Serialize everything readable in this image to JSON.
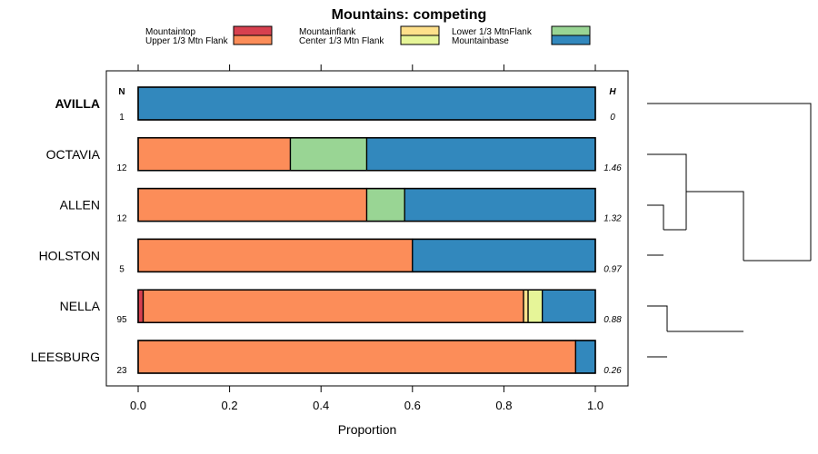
{
  "chart_data": {
    "type": "bar",
    "orientation": "horizontal",
    "stacked": true,
    "title": "Mountains: competing",
    "xlabel": "Proportion",
    "ylabel": "",
    "xlim": [
      0,
      1
    ],
    "xticks": [
      "0.0",
      "0.2",
      "0.4",
      "0.6",
      "0.8",
      "1.0"
    ],
    "n_header": "N",
    "h_header": "H",
    "categories": [
      "AVILLA",
      "OCTAVIA",
      "ALLEN",
      "HOLSTON",
      "NELLA",
      "LEESBURG"
    ],
    "highlight_category": "AVILLA",
    "n_values": [
      "1",
      "12",
      "12",
      "5",
      "95",
      "23"
    ],
    "h_values": [
      "0",
      "1.46",
      "1.32",
      "0.97",
      "0.88",
      "0.26"
    ],
    "series": [
      {
        "name": "Mountaintop",
        "color": "#d7404f",
        "values": [
          0,
          0,
          0,
          0,
          0.011,
          0
        ]
      },
      {
        "name": "Upper 1/3 Mtn Flank",
        "color": "#fc8d59",
        "values": [
          0,
          0.333,
          0.5,
          0.6,
          0.832,
          0.957
        ]
      },
      {
        "name": "Mountainflank",
        "color": "#fee08b",
        "values": [
          0,
          0,
          0,
          0,
          0.01,
          0
        ]
      },
      {
        "name": "Center 1/3 Mtn Flank",
        "color": "#e6f598",
        "values": [
          0,
          0,
          0,
          0,
          0.031,
          0
        ]
      },
      {
        "name": "Lower 1/3 MtnFlank",
        "color": "#99d594",
        "values": [
          0,
          0.167,
          0.083,
          0,
          0,
          0
        ]
      },
      {
        "name": "Mountainbase",
        "color": "#3288bd",
        "values": [
          1,
          0.5,
          0.417,
          0.4,
          0.116,
          0.043
        ]
      }
    ]
  }
}
